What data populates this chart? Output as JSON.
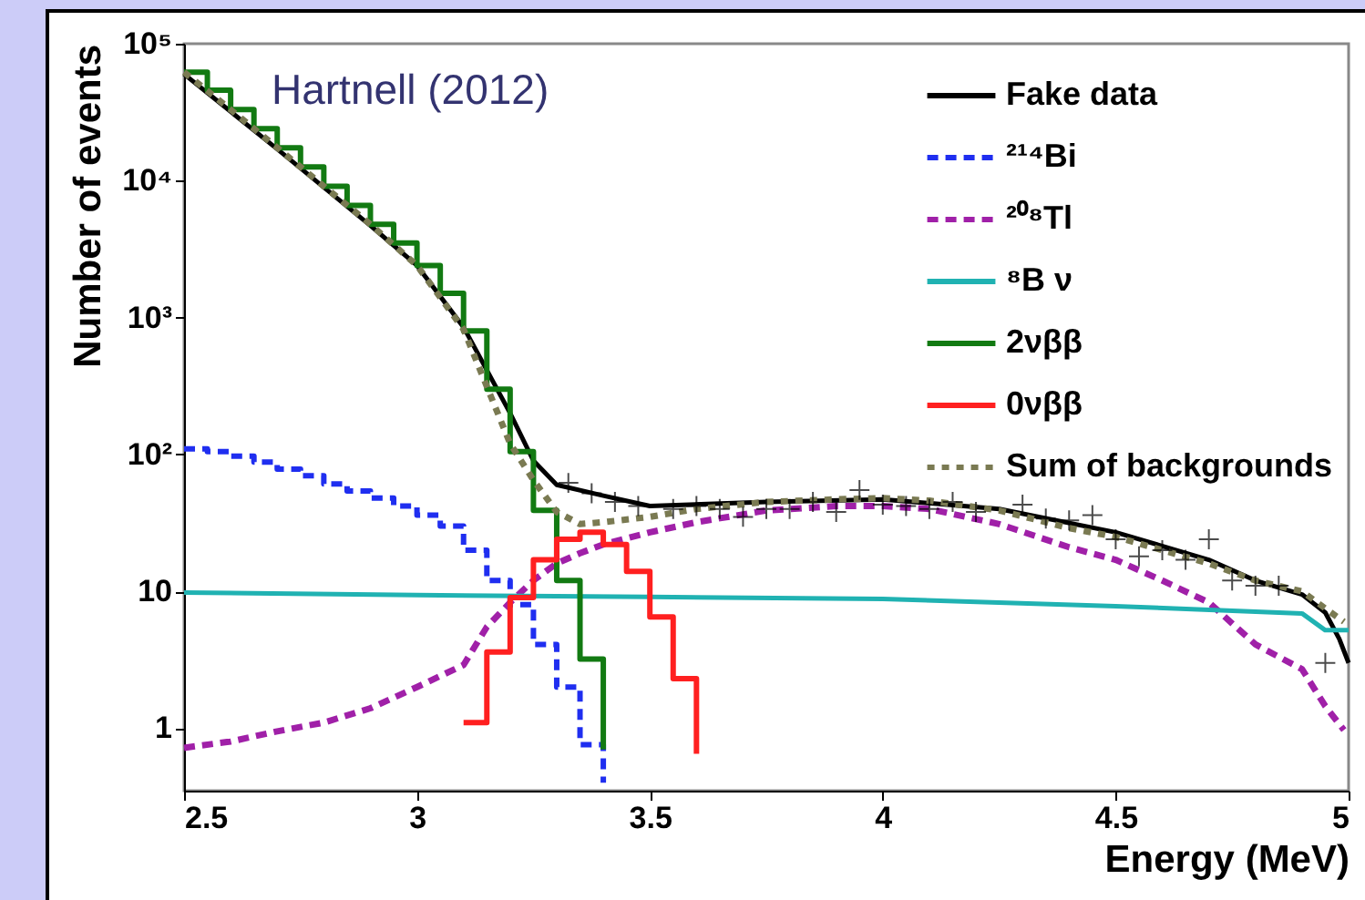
{
  "chart_data": {
    "type": "step",
    "xlabel": "Energy (MeV)",
    "ylabel": "Number of events",
    "annotations": [
      "Hartnell (2012)"
    ],
    "xlim": [
      2.5,
      5
    ],
    "xticks": [
      2.5,
      3,
      3.5,
      4,
      4.5,
      5
    ],
    "ylim": [
      0.35,
      100000
    ],
    "yticks": [
      1,
      10,
      {
        "value": 100,
        "label": "10²"
      },
      {
        "value": 1000,
        "label": "10³"
      },
      {
        "value": 10000,
        "label": "10⁴"
      },
      {
        "value": 100000,
        "label": "10⁵"
      }
    ],
    "log": "y",
    "grid": false,
    "legend": "top right",
    "series": [
      {
        "name": "Fake data",
        "type": "line",
        "color": "#000000",
        "line_style": "solid",
        "x": [
          2.5,
          2.7,
          2.9,
          3.0,
          3.1,
          3.2,
          3.25,
          3.3,
          3.4,
          3.5,
          3.75,
          4.0,
          4.25,
          4.5,
          4.7,
          4.8,
          4.9,
          4.95,
          4.98,
          5.0
        ],
        "values": [
          60000,
          17000,
          4700,
          2400,
          850,
          200,
          90,
          60,
          50,
          42,
          45,
          47,
          40,
          27,
          17,
          12,
          9.5,
          7,
          4.5,
          3
        ]
      },
      {
        "name": "²¹⁴Bi",
        "color": "#1f2ef0",
        "line_style": "dashed",
        "x": [
          2.5,
          2.55,
          2.6,
          2.65,
          2.7,
          2.75,
          2.8,
          2.85,
          2.9,
          2.95,
          3.0,
          3.05,
          3.1,
          3.15,
          3.2,
          3.25,
          3.3,
          3.35,
          3.4
        ],
        "values": [
          110,
          105,
          97,
          88,
          78,
          70,
          61,
          54,
          48,
          42,
          36,
          30,
          20,
          12,
          8,
          4.1,
          2,
          0.76,
          0.4
        ]
      },
      {
        "name": "²⁰⁸Tl",
        "type": "line",
        "color": "#a020a8",
        "line_style": "dashed",
        "x": [
          2.5,
          2.6,
          2.7,
          2.8,
          2.9,
          3.0,
          3.1,
          3.15,
          3.2,
          3.25,
          3.3,
          3.35,
          3.4,
          3.5,
          3.6,
          3.75,
          3.9,
          4.0,
          4.1,
          4.25,
          4.4,
          4.5,
          4.6,
          4.7,
          4.8,
          4.9,
          4.95,
          4.99
        ],
        "values": [
          0.72,
          0.8,
          0.95,
          1.1,
          1.4,
          2,
          2.9,
          5.5,
          8.3,
          12,
          16,
          19,
          22,
          27,
          32,
          39,
          42,
          42,
          40,
          31,
          21,
          17,
          12,
          8.3,
          4.1,
          2.7,
          1.45,
          0.97
        ]
      },
      {
        "name": "⁸B ν",
        "type": "line",
        "color": "#20b2b2",
        "line_style": "solid",
        "x": [
          2.5,
          3.0,
          3.5,
          4.0,
          4.5,
          4.9,
          4.95,
          5.0
        ],
        "values": [
          9.8,
          9.4,
          9.1,
          8.8,
          7.8,
          6.9,
          5.2,
          5.2
        ]
      },
      {
        "name": "2νββ",
        "color": "#127a12",
        "line_style": "solid",
        "x": [
          2.5,
          2.55,
          2.6,
          2.65,
          2.7,
          2.75,
          2.8,
          2.85,
          2.9,
          2.95,
          3.0,
          3.05,
          3.1,
          3.15,
          3.2,
          3.25,
          3.3,
          3.35,
          3.4
        ],
        "values": [
          62000,
          45700,
          33000,
          24000,
          17400,
          12600,
          9100,
          6600,
          4800,
          3500,
          2400,
          1500,
          800,
          300,
          105,
          39,
          12,
          3.2,
          0.7
        ]
      },
      {
        "name": "0νββ",
        "color": "#ff2020",
        "line_style": "solid",
        "x": [
          3.1,
          3.15,
          3.2,
          3.25,
          3.3,
          3.35,
          3.4,
          3.45,
          3.5,
          3.55,
          3.6
        ],
        "values": [
          1.1,
          3.6,
          9,
          17,
          24,
          27,
          22,
          14,
          6.5,
          2.3,
          0.65
        ]
      },
      {
        "name": "Sum of backgrounds",
        "type": "line",
        "color": "#7a7a52",
        "line_style": "dotted",
        "x": [
          2.5,
          2.6,
          2.7,
          2.8,
          2.9,
          3.0,
          3.1,
          3.2,
          3.25,
          3.3,
          3.35,
          3.4,
          3.5,
          3.6,
          3.75,
          3.9,
          4.0,
          4.1,
          4.25,
          4.4,
          4.5,
          4.6,
          4.7,
          4.8,
          4.9,
          4.95,
          4.99
        ],
        "values": [
          62000,
          33000,
          17400,
          9100,
          4800,
          2400,
          820,
          120,
          65,
          38,
          31,
          32,
          35,
          40,
          45,
          47,
          48,
          46,
          39,
          29,
          25,
          20,
          16,
          12,
          10,
          7.5,
          6
        ]
      },
      {
        "type": "scatter",
        "color": "#000000",
        "marker": "cross",
        "x": [
          3.325,
          3.375,
          3.425,
          3.475,
          3.55,
          3.6,
          3.65,
          3.7,
          3.75,
          3.8,
          3.85,
          3.9,
          3.95,
          4.0,
          4.05,
          4.1,
          4.15,
          4.2,
          4.3,
          4.35,
          4.4,
          4.45,
          4.5,
          4.55,
          4.6,
          4.65,
          4.7,
          4.75,
          4.8,
          4.85,
          4.95
        ],
        "values": [
          62,
          52,
          45,
          42,
          40,
          42,
          40,
          35,
          40,
          40,
          45,
          38,
          55,
          43,
          42,
          40,
          45,
          38,
          43,
          34,
          33,
          36,
          24,
          18,
          20,
          17,
          24,
          12,
          11,
          11,
          3
        ]
      }
    ]
  }
}
